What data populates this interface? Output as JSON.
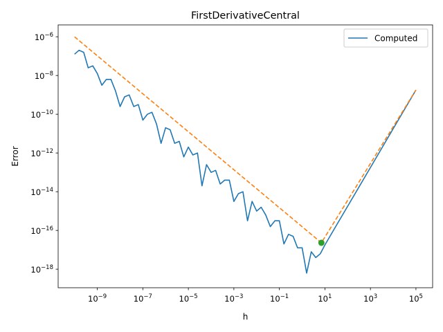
{
  "chart_data": {
    "type": "line",
    "title": "FirstDerivativeCentral",
    "xlabel": "h",
    "ylabel": "Error",
    "xscale": "log",
    "yscale": "log",
    "xlim": [
      1.9e-11,
      540000.0
    ],
    "ylim": [
      1.1e-19,
      4.1e-06
    ],
    "grid": false,
    "legend": {
      "placement": "top-right",
      "entries": [
        "Computed"
      ]
    },
    "xticks": [
      {
        "base": "10",
        "exp": "−9",
        "value": 1e-09
      },
      {
        "base": "10",
        "exp": "−7",
        "value": 1e-07
      },
      {
        "base": "10",
        "exp": "−5",
        "value": 1e-05
      },
      {
        "base": "10",
        "exp": "−3",
        "value": 0.001
      },
      {
        "base": "10",
        "exp": "−1",
        "value": 0.1
      },
      {
        "base": "10",
        "exp": "1",
        "value": 10.0
      },
      {
        "base": "10",
        "exp": "3",
        "value": 1000.0
      },
      {
        "base": "10",
        "exp": "5",
        "value": 100000.0
      }
    ],
    "yticks": [
      {
        "base": "10",
        "exp": "−18",
        "value": 1e-18
      },
      {
        "base": "10",
        "exp": "−16",
        "value": 1e-16
      },
      {
        "base": "10",
        "exp": "−14",
        "value": 1e-14
      },
      {
        "base": "10",
        "exp": "−12",
        "value": 1e-12
      },
      {
        "base": "10",
        "exp": "−10",
        "value": 1e-10
      },
      {
        "base": "10",
        "exp": "−8",
        "value": 1e-08
      },
      {
        "base": "10",
        "exp": "−6",
        "value": 1e-06
      }
    ],
    "series": [
      {
        "name": "Computed",
        "color": "#1f77b4",
        "style": "solid",
        "x": [
          1e-10,
          1.58e-10,
          2.51e-10,
          3.98e-10,
          6.31e-10,
          1e-09,
          1.58e-09,
          2.51e-09,
          3.98e-09,
          6.31e-09,
          1e-08,
          1.58e-08,
          2.51e-08,
          3.98e-08,
          6.31e-08,
          1e-07,
          1.58e-07,
          2.51e-07,
          3.98e-07,
          6.31e-07,
          1e-06,
          1.58e-06,
          2.51e-06,
          3.98e-06,
          6.31e-06,
          1e-05,
          1.58e-05,
          2.51e-05,
          3.98e-05,
          6.31e-05,
          0.0001,
          0.000158,
          0.000251,
          0.000398,
          0.000631,
          0.001,
          0.00158,
          0.00251,
          0.00398,
          0.00631,
          0.01,
          0.0158,
          0.0251,
          0.0398,
          0.0631,
          0.1,
          0.158,
          0.251,
          0.398,
          0.631,
          1,
          1.58,
          2.51,
          3.98,
          6.31,
          10,
          31.6,
          100,
          1000,
          10000,
          100000
        ],
        "y": [
          1.26e-07,
          2e-07,
          1.58e-07,
          2.51e-08,
          3.16e-08,
          1.26e-08,
          3.16e-09,
          6.31e-09,
          6.31e-09,
          1.58e-09,
          2.51e-10,
          7.94e-10,
          1e-09,
          2.51e-10,
          3.16e-10,
          5.01e-11,
          1e-10,
          1.26e-10,
          3.16e-11,
          3.16e-12,
          2e-11,
          1.58e-11,
          3.16e-12,
          3.98e-12,
          6.31e-13,
          2e-12,
          7.94e-13,
          1e-12,
          2e-14,
          2.51e-13,
          1e-13,
          1.26e-13,
          2.51e-14,
          3.98e-14,
          3.98e-14,
          3.16e-15,
          7.94e-15,
          1e-14,
          3.16e-16,
          3.16e-15,
          1e-15,
          1.58e-15,
          6.31e-16,
          1.58e-16,
          3.16e-16,
          3.16e-16,
          2e-17,
          6.31e-17,
          5.01e-17,
          1.26e-17,
          1.26e-17,
          6.31e-19,
          7.94e-18,
          3.98e-18,
          6.31e-18,
          1.78e-17,
          1.78e-16,
          1.78e-15,
          1.78e-13,
          1.78e-11,
          1.78e-09
        ]
      },
      {
        "color": "#ff7f0e",
        "style": "dashed",
        "x": [
          1e-10,
          7,
          100000
        ],
        "y": [
          1e-06,
          2.3e-17,
          1.78e-09
        ]
      }
    ],
    "markers": [
      {
        "color": "#2ca02c",
        "x": 7,
        "y": 2.3e-17
      }
    ]
  }
}
